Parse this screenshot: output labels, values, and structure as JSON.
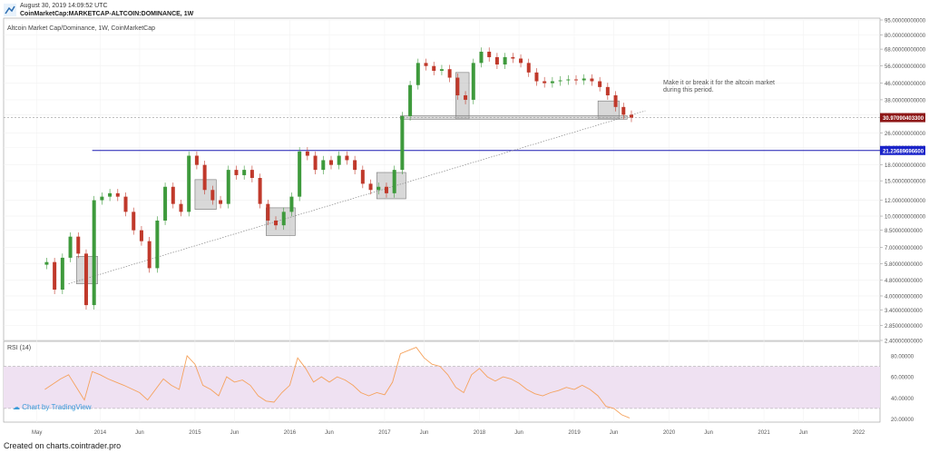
{
  "header": {
    "date": "August 30, 2019 14:09:52 UTC",
    "symbol": "CoinMarketCap:MARKETCAP-ALTCOIN:DOMINANCE, 1W"
  },
  "main_pane_title": "Altcoin Market Cap/Dominance, 1W, CoinMarketCap",
  "rsi_pane_title": "RSI (14)",
  "annotation": "Make it or break it for the altcoin market during this period.",
  "tv_link": "Chart by TradingView",
  "footer": "Created on charts.cointrader.pro",
  "colors": {
    "up": "#3e9a3c",
    "down": "#c0392b",
    "rsi_line": "#f5a25d",
    "rsi_band": "#efe1f2",
    "support_line": "#1b1bb3",
    "current_price_bg": "#8e1818",
    "support_price_bg": "#1a23c9"
  },
  "chart_data": [
    {
      "type": "candlestick",
      "title": "",
      "y_scale": "log",
      "ylim": [
        2.4,
        95
      ],
      "y_ticks": [
        "95.00000000000",
        "80.00000000000",
        "68.00000000000",
        "56.00000000000",
        "46.00000000000",
        "38.00000000000",
        "32.00000000000",
        "26.00000000000",
        "22.00000000000",
        "18.00000000000",
        "15.00000000000",
        "12.00000000000",
        "10.00000000000",
        "8.50000000000",
        "7.00000000000",
        "5.80000000000",
        "4.80000000000",
        "4.00000000000",
        "3.40000000000",
        "2.85000000000",
        "2.40000000000"
      ],
      "x_labels": [
        "May",
        "2014",
        "Jun",
        "2015",
        "Jun",
        "2016",
        "Jun",
        "2017",
        "Jun",
        "2018",
        "Jun",
        "2019",
        "Jun",
        "2020",
        "Jun",
        "2021",
        "Jun",
        "2022"
      ],
      "x_range": [
        "2013-04",
        "2022-03"
      ],
      "current_price_label": "30.97090403300",
      "support_price_label": "21.23689696600",
      "support_level": 21.237,
      "current_level": 30.971,
      "trendline": [
        {
          "date": "2013-09",
          "value": 4.6
        },
        {
          "date": "2019-10",
          "value": 33.5
        }
      ],
      "highlight_boxes": [
        {
          "from": "2013-10",
          "to": "2013-12",
          "low": 4.6,
          "high": 6.3
        },
        {
          "from": "2015-01",
          "to": "2015-03",
          "low": 10.8,
          "high": 15.2
        },
        {
          "from": "2015-10",
          "to": "2016-01",
          "low": 8.0,
          "high": 11.0
        },
        {
          "from": "2016-12",
          "to": "2017-03",
          "low": 12.2,
          "high": 16.5
        },
        {
          "from": "2017-10",
          "to": "2017-11",
          "low": 30.5,
          "high": 52
        },
        {
          "from": "2019-04",
          "to": "2019-06",
          "low": 30.5,
          "high": 37.5
        },
        {
          "from": "2017-03",
          "to": "2019-07",
          "low": 30.4,
          "high": 31.6
        }
      ],
      "series": [
        {
          "date": "2013-06",
          "value": 5.9
        },
        {
          "date": "2013-07",
          "value": 4.3
        },
        {
          "date": "2013-08",
          "value": 6.2
        },
        {
          "date": "2013-09",
          "value": 7.9
        },
        {
          "date": "2013-10",
          "value": 6.5
        },
        {
          "date": "2013-11",
          "value": 3.6
        },
        {
          "date": "2013-12",
          "value": 12.0
        },
        {
          "date": "2014-01",
          "value": 12.5
        },
        {
          "date": "2014-02",
          "value": 13.0
        },
        {
          "date": "2014-03",
          "value": 12.5
        },
        {
          "date": "2014-04",
          "value": 10.5
        },
        {
          "date": "2014-05",
          "value": 8.5
        },
        {
          "date": "2014-06",
          "value": 7.5
        },
        {
          "date": "2014-07",
          "value": 5.5
        },
        {
          "date": "2014-08",
          "value": 9.5
        },
        {
          "date": "2014-09",
          "value": 14.0
        },
        {
          "date": "2014-10",
          "value": 11.5
        },
        {
          "date": "2014-11",
          "value": 10.5
        },
        {
          "date": "2014-12",
          "value": 20.0
        },
        {
          "date": "2015-01",
          "value": 18.0
        },
        {
          "date": "2015-02",
          "value": 13.5
        },
        {
          "date": "2015-03",
          "value": 12.0
        },
        {
          "date": "2015-04",
          "value": 11.5
        },
        {
          "date": "2015-05",
          "value": 17.0
        },
        {
          "date": "2015-06",
          "value": 16.0
        },
        {
          "date": "2015-07",
          "value": 17.0
        },
        {
          "date": "2015-08",
          "value": 15.5
        },
        {
          "date": "2015-09",
          "value": 11.5
        },
        {
          "date": "2015-10",
          "value": 9.5
        },
        {
          "date": "2015-11",
          "value": 9.0
        },
        {
          "date": "2015-12",
          "value": 10.5
        },
        {
          "date": "2016-01",
          "value": 12.5
        },
        {
          "date": "2016-02",
          "value": 21.0
        },
        {
          "date": "2016-03",
          "value": 20.0
        },
        {
          "date": "2016-04",
          "value": 17.0
        },
        {
          "date": "2016-05",
          "value": 19.0
        },
        {
          "date": "2016-06",
          "value": 18.0
        },
        {
          "date": "2016-07",
          "value": 20.0
        },
        {
          "date": "2016-08",
          "value": 19.0
        },
        {
          "date": "2016-09",
          "value": 17.0
        },
        {
          "date": "2016-10",
          "value": 14.5
        },
        {
          "date": "2016-11",
          "value": 13.5
        },
        {
          "date": "2016-12",
          "value": 14.0
        },
        {
          "date": "2017-01",
          "value": 13.0
        },
        {
          "date": "2017-02",
          "value": 17.0
        },
        {
          "date": "2017-03",
          "value": 31.5
        },
        {
          "date": "2017-04",
          "value": 45.0
        },
        {
          "date": "2017-05",
          "value": 58.0
        },
        {
          "date": "2017-06",
          "value": 56.0
        },
        {
          "date": "2017-07",
          "value": 53.0
        },
        {
          "date": "2017-08",
          "value": 54.0
        },
        {
          "date": "2017-09",
          "value": 49.0
        },
        {
          "date": "2017-10",
          "value": 40.0
        },
        {
          "date": "2017-11",
          "value": 38.0
        },
        {
          "date": "2017-12",
          "value": 58.0
        },
        {
          "date": "2018-01",
          "value": 66.0
        },
        {
          "date": "2018-02",
          "value": 62.0
        },
        {
          "date": "2018-03",
          "value": 57.0
        },
        {
          "date": "2018-04",
          "value": 62.0
        },
        {
          "date": "2018-05",
          "value": 61.0
        },
        {
          "date": "2018-06",
          "value": 58.0
        },
        {
          "date": "2018-07",
          "value": 52.0
        },
        {
          "date": "2018-08",
          "value": 47.0
        },
        {
          "date": "2018-09",
          "value": 46.0
        },
        {
          "date": "2018-10",
          "value": 47.0
        },
        {
          "date": "2018-11",
          "value": 47.5
        },
        {
          "date": "2018-12",
          "value": 48.0
        },
        {
          "date": "2019-01",
          "value": 47.5
        },
        {
          "date": "2019-02",
          "value": 48.5
        },
        {
          "date": "2019-03",
          "value": 47.0
        },
        {
          "date": "2019-04",
          "value": 44.0
        },
        {
          "date": "2019-05",
          "value": 40.0
        },
        {
          "date": "2019-06",
          "value": 35.0
        },
        {
          "date": "2019-07",
          "value": 32.0
        },
        {
          "date": "2019-08",
          "value": 30.97
        }
      ]
    },
    {
      "type": "line",
      "title": "RSI (14)",
      "ylim": [
        17,
        92
      ],
      "y_ticks": [
        "80.00000",
        "60.00000",
        "40.00000",
        "20.00000"
      ],
      "band": [
        30,
        70
      ],
      "series": [
        {
          "date": "2013-06",
          "value": 48
        },
        {
          "date": "2013-08",
          "value": 58
        },
        {
          "date": "2013-09",
          "value": 62
        },
        {
          "date": "2013-10",
          "value": 50
        },
        {
          "date": "2013-11",
          "value": 38
        },
        {
          "date": "2013-12",
          "value": 65
        },
        {
          "date": "2014-01",
          "value": 62
        },
        {
          "date": "2014-02",
          "value": 58
        },
        {
          "date": "2014-04",
          "value": 52
        },
        {
          "date": "2014-06",
          "value": 45
        },
        {
          "date": "2014-07",
          "value": 38
        },
        {
          "date": "2014-08",
          "value": 48
        },
        {
          "date": "2014-09",
          "value": 58
        },
        {
          "date": "2014-10",
          "value": 52
        },
        {
          "date": "2014-11",
          "value": 48
        },
        {
          "date": "2014-12",
          "value": 80
        },
        {
          "date": "2015-01",
          "value": 72
        },
        {
          "date": "2015-02",
          "value": 52
        },
        {
          "date": "2015-03",
          "value": 48
        },
        {
          "date": "2015-04",
          "value": 42
        },
        {
          "date": "2015-05",
          "value": 60
        },
        {
          "date": "2015-06",
          "value": 55
        },
        {
          "date": "2015-07",
          "value": 57
        },
        {
          "date": "2015-08",
          "value": 52
        },
        {
          "date": "2015-09",
          "value": 42
        },
        {
          "date": "2015-10",
          "value": 37
        },
        {
          "date": "2015-11",
          "value": 36
        },
        {
          "date": "2015-12",
          "value": 45
        },
        {
          "date": "2016-01",
          "value": 52
        },
        {
          "date": "2016-02",
          "value": 78
        },
        {
          "date": "2016-03",
          "value": 68
        },
        {
          "date": "2016-04",
          "value": 55
        },
        {
          "date": "2016-05",
          "value": 60
        },
        {
          "date": "2016-06",
          "value": 55
        },
        {
          "date": "2016-07",
          "value": 60
        },
        {
          "date": "2016-08",
          "value": 57
        },
        {
          "date": "2016-09",
          "value": 52
        },
        {
          "date": "2016-10",
          "value": 45
        },
        {
          "date": "2016-11",
          "value": 42
        },
        {
          "date": "2016-12",
          "value": 45
        },
        {
          "date": "2017-01",
          "value": 43
        },
        {
          "date": "2017-02",
          "value": 55
        },
        {
          "date": "2017-03",
          "value": 82
        },
        {
          "date": "2017-04",
          "value": 85
        },
        {
          "date": "2017-05",
          "value": 88
        },
        {
          "date": "2017-06",
          "value": 78
        },
        {
          "date": "2017-07",
          "value": 72
        },
        {
          "date": "2017-08",
          "value": 70
        },
        {
          "date": "2017-09",
          "value": 62
        },
        {
          "date": "2017-10",
          "value": 50
        },
        {
          "date": "2017-11",
          "value": 45
        },
        {
          "date": "2017-12",
          "value": 62
        },
        {
          "date": "2018-01",
          "value": 68
        },
        {
          "date": "2018-02",
          "value": 60
        },
        {
          "date": "2018-03",
          "value": 56
        },
        {
          "date": "2018-04",
          "value": 60
        },
        {
          "date": "2018-05",
          "value": 58
        },
        {
          "date": "2018-06",
          "value": 54
        },
        {
          "date": "2018-07",
          "value": 48
        },
        {
          "date": "2018-08",
          "value": 44
        },
        {
          "date": "2018-09",
          "value": 42
        },
        {
          "date": "2018-10",
          "value": 45
        },
        {
          "date": "2018-11",
          "value": 47
        },
        {
          "date": "2018-12",
          "value": 50
        },
        {
          "date": "2019-01",
          "value": 48
        },
        {
          "date": "2019-02",
          "value": 52
        },
        {
          "date": "2019-03",
          "value": 48
        },
        {
          "date": "2019-04",
          "value": 42
        },
        {
          "date": "2019-05",
          "value": 32
        },
        {
          "date": "2019-06",
          "value": 30
        },
        {
          "date": "2019-07",
          "value": 24
        },
        {
          "date": "2019-08",
          "value": 21
        }
      ]
    }
  ]
}
